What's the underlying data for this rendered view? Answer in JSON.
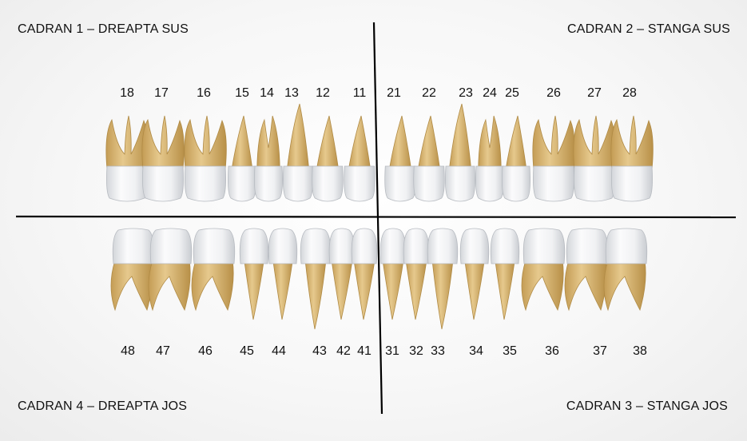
{
  "quadrants": {
    "q1": "CADRAN 1 – DREAPTA SUS",
    "q2": "CADRAN 2 – STANGA SUS",
    "q3": "CADRAN 3 – STANGA JOS",
    "q4": "CADRAN 4 – DREAPTA JOS"
  },
  "colors": {
    "root": "#dcba78",
    "root_dark": "#b8924a",
    "crown": "#f4f5f6",
    "crown_shade": "#cfd2d6",
    "divider": "#000000"
  },
  "upper_teeth": [
    {
      "number": "18",
      "type": "molar",
      "roots": 3
    },
    {
      "number": "17",
      "type": "molar",
      "roots": 3
    },
    {
      "number": "16",
      "type": "molar",
      "roots": 3
    },
    {
      "number": "15",
      "type": "premolar",
      "roots": 1
    },
    {
      "number": "14",
      "type": "premolar",
      "roots": 2
    },
    {
      "number": "13",
      "type": "canine",
      "roots": 1
    },
    {
      "number": "12",
      "type": "incisor",
      "roots": 1
    },
    {
      "number": "11",
      "type": "incisor",
      "roots": 1
    },
    {
      "number": "21",
      "type": "incisor",
      "roots": 1
    },
    {
      "number": "22",
      "type": "incisor",
      "roots": 1
    },
    {
      "number": "23",
      "type": "canine",
      "roots": 1
    },
    {
      "number": "24",
      "type": "premolar",
      "roots": 2
    },
    {
      "number": "25",
      "type": "premolar",
      "roots": 1
    },
    {
      "number": "26",
      "type": "molar",
      "roots": 3
    },
    {
      "number": "27",
      "type": "molar",
      "roots": 3
    },
    {
      "number": "28",
      "type": "molar",
      "roots": 3
    }
  ],
  "lower_teeth": [
    {
      "number": "48",
      "type": "molar",
      "roots": 2
    },
    {
      "number": "47",
      "type": "molar",
      "roots": 2
    },
    {
      "number": "46",
      "type": "molar",
      "roots": 2
    },
    {
      "number": "45",
      "type": "premolar",
      "roots": 1
    },
    {
      "number": "44",
      "type": "premolar",
      "roots": 1
    },
    {
      "number": "43",
      "type": "canine",
      "roots": 1
    },
    {
      "number": "42",
      "type": "incisor",
      "roots": 1
    },
    {
      "number": "41",
      "type": "incisor",
      "roots": 1
    },
    {
      "number": "31",
      "type": "incisor",
      "roots": 1
    },
    {
      "number": "32",
      "type": "incisor",
      "roots": 1
    },
    {
      "number": "33",
      "type": "canine",
      "roots": 1
    },
    {
      "number": "34",
      "type": "premolar",
      "roots": 1
    },
    {
      "number": "35",
      "type": "premolar",
      "roots": 1
    },
    {
      "number": "36",
      "type": "molar",
      "roots": 2
    },
    {
      "number": "37",
      "type": "molar",
      "roots": 2
    },
    {
      "number": "38",
      "type": "molar",
      "roots": 2
    }
  ]
}
